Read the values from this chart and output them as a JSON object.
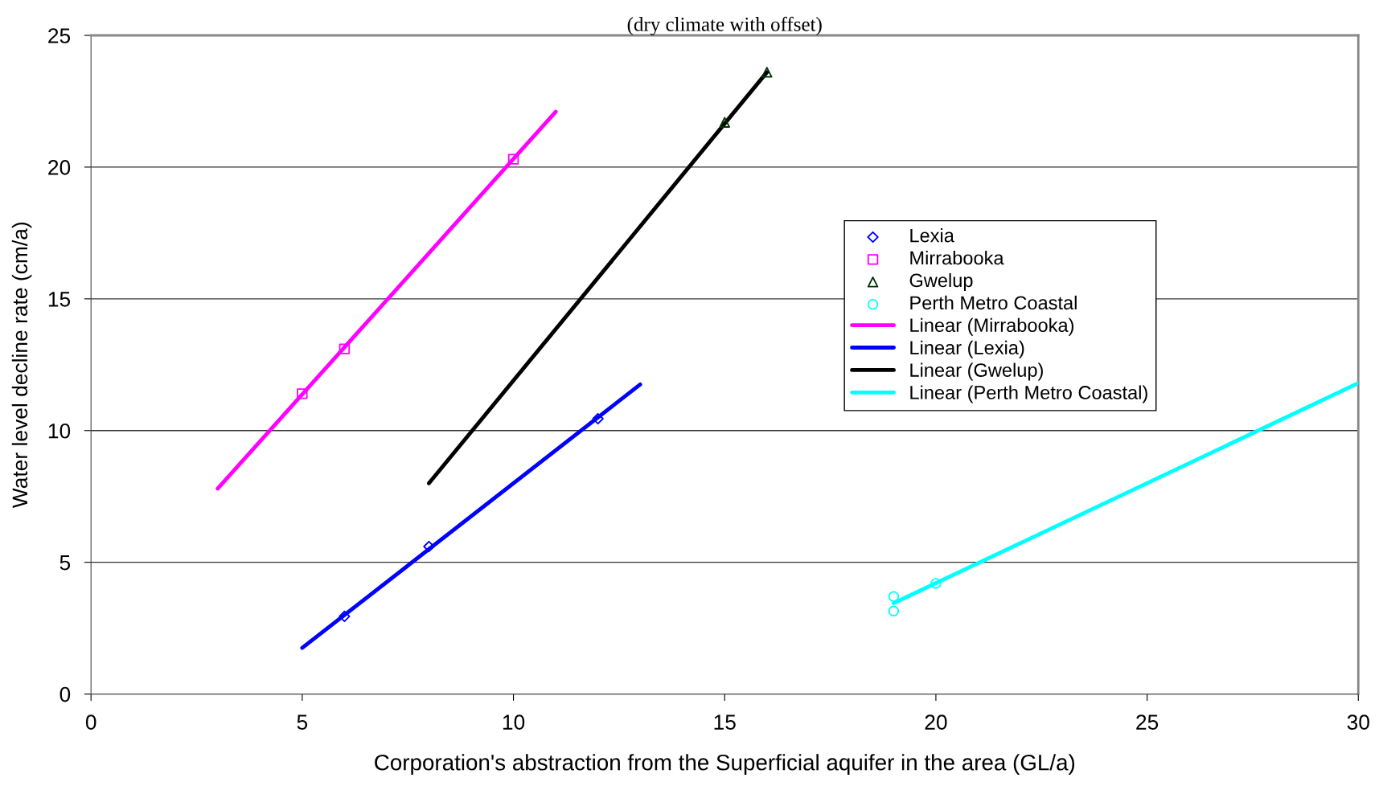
{
  "chart_data": {
    "type": "scatter",
    "title": "(dry climate with offset)",
    "xlabel": "Corporation's abstraction from the Superficial aquifer in the area (GL/a)",
    "ylabel": "Water level decline rate (cm/a)",
    "xlim": [
      0,
      30
    ],
    "xticks": [
      0,
      5,
      10,
      15,
      20,
      25,
      30
    ],
    "ylim": [
      0,
      25
    ],
    "yticks": [
      0,
      5,
      10,
      15,
      20,
      25
    ],
    "grid": "y",
    "legend": "right",
    "series": [
      {
        "name": "Lexia",
        "marker": "diamond",
        "color": "#0000ff",
        "x": [
          6,
          8,
          12
        ],
        "values": [
          2.95,
          5.6,
          10.45
        ]
      },
      {
        "name": "Mirrabooka",
        "marker": "square",
        "color": "#ff00ff",
        "x": [
          5,
          6,
          10
        ],
        "values": [
          11.4,
          13.1,
          20.3
        ]
      },
      {
        "name": "Gwelup",
        "marker": "triangle",
        "color": "#003300",
        "x": [
          15,
          16
        ],
        "values": [
          21.7,
          23.6
        ]
      },
      {
        "name": "Perth Metro Coastal",
        "marker": "circle",
        "color": "#00ffff",
        "x": [
          19,
          19,
          20
        ],
        "values": [
          3.7,
          3.15,
          4.2
        ]
      },
      {
        "name": "Linear (Mirrabooka)",
        "type": "line",
        "marker": "none",
        "color": "#ff00ff",
        "x": [
          3,
          11
        ],
        "values": [
          7.8,
          22.1
        ]
      },
      {
        "name": "Linear (Lexia)",
        "type": "line",
        "marker": "none",
        "color": "#0000ff",
        "x": [
          5,
          13
        ],
        "values": [
          1.75,
          11.75
        ]
      },
      {
        "name": "Linear (Gwelup)",
        "type": "line",
        "marker": "none",
        "color": "#000000",
        "x": [
          8,
          16
        ],
        "values": [
          8.0,
          23.6
        ]
      },
      {
        "name": "Linear (Perth Metro Coastal)",
        "type": "line",
        "marker": "none",
        "color": "#00ffff",
        "x": [
          19,
          30
        ],
        "values": [
          3.45,
          11.8
        ]
      }
    ]
  }
}
